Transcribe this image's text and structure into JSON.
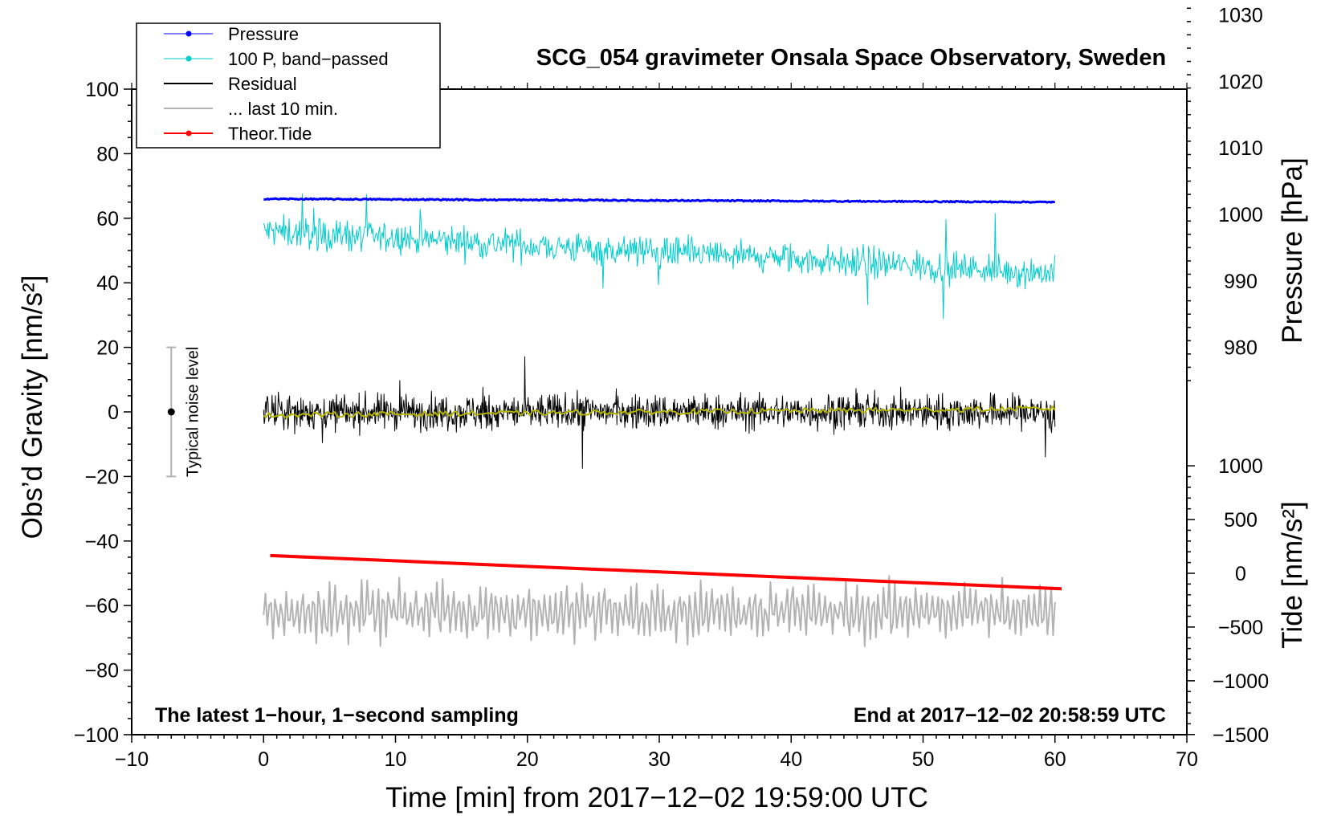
{
  "chart_data": {
    "type": "line",
    "title": "SCG_054 gravimeter Onsala Space Observatory, Sweden",
    "xlabel": "Time [min] from 2017−12−02 19:59:00 UTC",
    "ylabel_left": "Obs’d Gravity [nm/s²]",
    "ylabel_right_pressure": "Pressure [hPa]",
    "ylabel_right_tide": "Tide [nm/s²]",
    "xlim": [
      -10,
      70
    ],
    "ylim": [
      -100,
      100
    ],
    "x_ticks": [
      -10,
      0,
      10,
      20,
      30,
      40,
      50,
      60,
      70
    ],
    "x_tick_labels": [
      "−10",
      "0",
      "10",
      "20",
      "30",
      "40",
      "50",
      "60",
      "70"
    ],
    "y_ticks": [
      -100,
      -80,
      -60,
      -40,
      -20,
      0,
      20,
      40,
      60,
      80,
      100
    ],
    "y_tick_labels": [
      "−100",
      "−80",
      "−60",
      "−40",
      "−20",
      "0",
      "20",
      "40",
      "60",
      "80",
      "100"
    ],
    "pressure_axis": {
      "ticks": [
        980,
        990,
        1000,
        1010,
        1020,
        1030
      ],
      "tick_labels": [
        "980",
        "990",
        "1000",
        "1010",
        "1020",
        "1030"
      ],
      "gravity_at_980": 20,
      "gravity_per_hpa": 2.06
    },
    "tide_axis": {
      "ticks": [
        -1500,
        -1000,
        -500,
        0,
        500,
        1000
      ],
      "tick_labels": [
        "−1500",
        "−1000",
        "−500",
        "0",
        "500",
        "1000"
      ],
      "gravity_at_0": -50,
      "gravity_per_unit": 0.0333
    },
    "legend": [
      {
        "label": "Pressure",
        "color": "#0000ff",
        "marker": true
      },
      {
        "label": "100 P, band−passed",
        "color": "#00cccc",
        "marker": true
      },
      {
        "label": "Residual",
        "color": "#000000",
        "marker": false
      },
      {
        "label": "... last 10 min.",
        "color": "#b3b3b3",
        "marker": false
      },
      {
        "label": "Theor.Tide",
        "color": "#ff0000",
        "marker": true
      }
    ],
    "series": [
      {
        "name": "Pressure",
        "color": "#0000ff",
        "x_range": [
          0,
          60
        ],
        "y_start": 66,
        "y_end": 65,
        "noise": 0.4
      },
      {
        "name": "100 P, band−passed",
        "color": "#00cccc",
        "x_range": [
          0,
          60
        ],
        "y_start": 56,
        "y_end": 43,
        "amplitude": 11
      },
      {
        "name": "Residual",
        "color": "#000000",
        "x_range": [
          0,
          60
        ],
        "y_center": 0,
        "amplitude": 12
      },
      {
        "name": "Residual smoothed",
        "color": "#b3b300",
        "x_range": [
          0,
          60
        ],
        "y_start": -1,
        "y_end": 1
      },
      {
        "name": "... last 10 min.",
        "color": "#b3b3b3",
        "x_range": [
          0,
          60
        ],
        "y_center": -62,
        "amplitude": 9
      },
      {
        "name": "Theor.Tide",
        "color": "#ff0000",
        "x_range": [
          0.5,
          60.5
        ],
        "y_start": -44.5,
        "y_end": -54.8
      }
    ],
    "noise_bar": {
      "label": "Typical noise level",
      "x": -7,
      "y_center": 0,
      "y_low": -20,
      "y_high": 20
    },
    "footnote_left": "The latest 1−hour, 1−second sampling",
    "footnote_right": "End at 2017−12−02 20:58:59 UTC"
  }
}
